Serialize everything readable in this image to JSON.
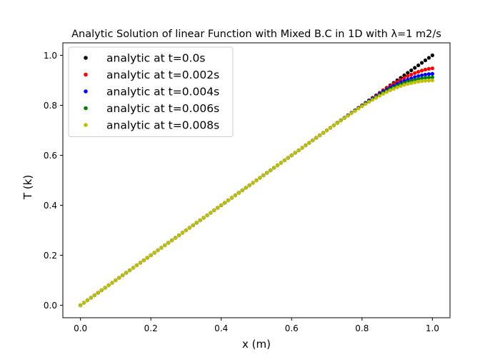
{
  "chart_data": {
    "type": "scatter",
    "title": "Analytic Solution of linear Function with Mixed B.C in 1D with λ=1 m2/s",
    "xlabel": "x (m)",
    "ylabel": "T (k)",
    "xlim": [
      -0.05,
      1.05
    ],
    "ylim": [
      -0.05,
      1.05
    ],
    "xticks": [
      0.0,
      0.2,
      0.4,
      0.6,
      0.8,
      1.0
    ],
    "yticks": [
      0.0,
      0.2,
      0.4,
      0.6,
      0.8,
      1.0
    ],
    "xtick_labels": [
      "0.0",
      "0.2",
      "0.4",
      "0.6",
      "0.8",
      "1.0"
    ],
    "ytick_labels": [
      "0.0",
      "0.2",
      "0.4",
      "0.6",
      "0.8",
      "1.0"
    ],
    "grid": false,
    "legend_position": "top-left",
    "x": [
      0.0,
      0.01,
      0.02,
      0.03,
      0.04,
      0.05,
      0.06,
      0.07,
      0.08,
      0.09,
      0.1,
      0.11,
      0.12,
      0.13,
      0.14,
      0.15,
      0.16,
      0.17,
      0.18,
      0.19,
      0.2,
      0.21,
      0.22,
      0.23,
      0.24,
      0.25,
      0.26,
      0.27,
      0.28,
      0.29,
      0.3,
      0.31,
      0.32,
      0.33,
      0.34,
      0.35,
      0.36,
      0.37,
      0.38,
      0.39,
      0.4,
      0.41,
      0.42,
      0.43,
      0.44,
      0.45,
      0.46,
      0.47,
      0.48,
      0.49,
      0.5,
      0.51,
      0.52,
      0.53,
      0.54,
      0.55,
      0.56,
      0.57,
      0.58,
      0.59,
      0.6,
      0.61,
      0.62,
      0.63,
      0.64,
      0.65,
      0.66,
      0.67,
      0.68,
      0.69,
      0.7,
      0.71,
      0.72,
      0.73,
      0.74,
      0.75,
      0.76,
      0.77,
      0.78,
      0.79,
      0.8,
      0.81,
      0.82,
      0.83,
      0.84,
      0.85,
      0.86,
      0.87,
      0.88,
      0.89,
      0.9,
      0.91,
      0.92,
      0.93,
      0.94,
      0.95,
      0.96,
      0.97,
      0.98,
      0.99,
      1.0
    ],
    "series": [
      {
        "name": "analytic at t=0.0s",
        "color": "#000000",
        "values": [
          0.0,
          0.01,
          0.02,
          0.03,
          0.04,
          0.05,
          0.06,
          0.07,
          0.08,
          0.09,
          0.1,
          0.11,
          0.12,
          0.13,
          0.14,
          0.15,
          0.16,
          0.17,
          0.18,
          0.19,
          0.2,
          0.21,
          0.22,
          0.23,
          0.24,
          0.25,
          0.26,
          0.27,
          0.28,
          0.29,
          0.3,
          0.31,
          0.32,
          0.33,
          0.34,
          0.35,
          0.36,
          0.37,
          0.38,
          0.39,
          0.4,
          0.41,
          0.42,
          0.43,
          0.44,
          0.45,
          0.46,
          0.47,
          0.48,
          0.49,
          0.5,
          0.51,
          0.52,
          0.53,
          0.54,
          0.55,
          0.56,
          0.57,
          0.58,
          0.59,
          0.6,
          0.61,
          0.62,
          0.63,
          0.64,
          0.65,
          0.66,
          0.67,
          0.68,
          0.69,
          0.7,
          0.71,
          0.72,
          0.73,
          0.74,
          0.75,
          0.76,
          0.77,
          0.78,
          0.79,
          0.8,
          0.81,
          0.82,
          0.83,
          0.84,
          0.85,
          0.86,
          0.87,
          0.88,
          0.89,
          0.9,
          0.91,
          0.92,
          0.93,
          0.94,
          0.95,
          0.96,
          0.97,
          0.98,
          0.99,
          1.0
        ]
      },
      {
        "name": "analytic at t=0.002s",
        "color": "#ff0000",
        "values": [
          0.0,
          0.01,
          0.02,
          0.03,
          0.04,
          0.05,
          0.06,
          0.07,
          0.08,
          0.09,
          0.1,
          0.11,
          0.12,
          0.13,
          0.14,
          0.15,
          0.16,
          0.17,
          0.18,
          0.19,
          0.2,
          0.21,
          0.22,
          0.23,
          0.24,
          0.25,
          0.26,
          0.27,
          0.28,
          0.29,
          0.3,
          0.31,
          0.32,
          0.33,
          0.34,
          0.35,
          0.36,
          0.37,
          0.38,
          0.39,
          0.4,
          0.41,
          0.42,
          0.43,
          0.44,
          0.45,
          0.46,
          0.47,
          0.48,
          0.49,
          0.5,
          0.51,
          0.52,
          0.53,
          0.54,
          0.55,
          0.56,
          0.57,
          0.58,
          0.59,
          0.6,
          0.61,
          0.62,
          0.63,
          0.64,
          0.65,
          0.66,
          0.67,
          0.68,
          0.69,
          0.7,
          0.71,
          0.72,
          0.73,
          0.74,
          0.75,
          0.76,
          0.77,
          0.78,
          0.79,
          0.8,
          0.81,
          0.82,
          0.83,
          0.84,
          0.849,
          0.859,
          0.868,
          0.877,
          0.886,
          0.894,
          0.902,
          0.91,
          0.917,
          0.923,
          0.929,
          0.934,
          0.939,
          0.943,
          0.946,
          0.948
        ]
      },
      {
        "name": "analytic at t=0.004s",
        "color": "#0000ff",
        "values": [
          0.0,
          0.01,
          0.02,
          0.03,
          0.04,
          0.05,
          0.06,
          0.07,
          0.08,
          0.09,
          0.1,
          0.11,
          0.12,
          0.13,
          0.14,
          0.15,
          0.16,
          0.17,
          0.18,
          0.19,
          0.2,
          0.21,
          0.22,
          0.23,
          0.24,
          0.25,
          0.26,
          0.27,
          0.28,
          0.29,
          0.3,
          0.31,
          0.32,
          0.33,
          0.34,
          0.35,
          0.36,
          0.37,
          0.38,
          0.39,
          0.4,
          0.41,
          0.42,
          0.43,
          0.44,
          0.45,
          0.46,
          0.47,
          0.48,
          0.49,
          0.5,
          0.51,
          0.52,
          0.53,
          0.54,
          0.55,
          0.56,
          0.57,
          0.58,
          0.59,
          0.6,
          0.61,
          0.62,
          0.63,
          0.64,
          0.65,
          0.66,
          0.67,
          0.68,
          0.69,
          0.7,
          0.71,
          0.72,
          0.73,
          0.74,
          0.75,
          0.76,
          0.77,
          0.78,
          0.789,
          0.799,
          0.809,
          0.819,
          0.828,
          0.837,
          0.846,
          0.855,
          0.863,
          0.871,
          0.878,
          0.885,
          0.892,
          0.898,
          0.903,
          0.908,
          0.913,
          0.917,
          0.92,
          0.923,
          0.925,
          0.926
        ]
      },
      {
        "name": "analytic at t=0.006s",
        "color": "#008000",
        "values": [
          0.0,
          0.01,
          0.02,
          0.03,
          0.04,
          0.05,
          0.06,
          0.07,
          0.08,
          0.09,
          0.1,
          0.11,
          0.12,
          0.13,
          0.14,
          0.15,
          0.16,
          0.17,
          0.18,
          0.19,
          0.2,
          0.21,
          0.22,
          0.23,
          0.24,
          0.25,
          0.26,
          0.27,
          0.28,
          0.29,
          0.3,
          0.31,
          0.32,
          0.33,
          0.34,
          0.35,
          0.36,
          0.37,
          0.38,
          0.39,
          0.4,
          0.41,
          0.42,
          0.43,
          0.44,
          0.45,
          0.46,
          0.47,
          0.48,
          0.49,
          0.5,
          0.51,
          0.52,
          0.53,
          0.54,
          0.55,
          0.56,
          0.57,
          0.58,
          0.59,
          0.6,
          0.61,
          0.62,
          0.63,
          0.64,
          0.65,
          0.66,
          0.67,
          0.68,
          0.69,
          0.7,
          0.71,
          0.72,
          0.73,
          0.74,
          0.749,
          0.759,
          0.769,
          0.779,
          0.788,
          0.798,
          0.807,
          0.816,
          0.825,
          0.834,
          0.842,
          0.85,
          0.858,
          0.865,
          0.872,
          0.878,
          0.884,
          0.889,
          0.894,
          0.898,
          0.902,
          0.905,
          0.908,
          0.91,
          0.911,
          0.912
        ]
      },
      {
        "name": "analytic at t=0.008s",
        "color": "#bfbf00",
        "values": [
          0.0,
          0.01,
          0.02,
          0.03,
          0.04,
          0.05,
          0.06,
          0.07,
          0.08,
          0.09,
          0.1,
          0.11,
          0.12,
          0.13,
          0.14,
          0.15,
          0.16,
          0.17,
          0.18,
          0.19,
          0.2,
          0.21,
          0.22,
          0.23,
          0.24,
          0.25,
          0.26,
          0.27,
          0.28,
          0.29,
          0.3,
          0.31,
          0.32,
          0.33,
          0.34,
          0.35,
          0.36,
          0.37,
          0.38,
          0.39,
          0.4,
          0.41,
          0.42,
          0.43,
          0.44,
          0.45,
          0.46,
          0.47,
          0.48,
          0.49,
          0.5,
          0.51,
          0.52,
          0.53,
          0.54,
          0.55,
          0.56,
          0.57,
          0.58,
          0.59,
          0.6,
          0.61,
          0.62,
          0.63,
          0.64,
          0.65,
          0.66,
          0.67,
          0.68,
          0.69,
          0.7,
          0.71,
          0.72,
          0.729,
          0.739,
          0.749,
          0.758,
          0.768,
          0.777,
          0.787,
          0.796,
          0.805,
          0.814,
          0.822,
          0.83,
          0.838,
          0.846,
          0.853,
          0.86,
          0.866,
          0.872,
          0.877,
          0.882,
          0.886,
          0.889,
          0.892,
          0.895,
          0.897,
          0.898,
          0.899,
          0.9
        ]
      }
    ]
  }
}
